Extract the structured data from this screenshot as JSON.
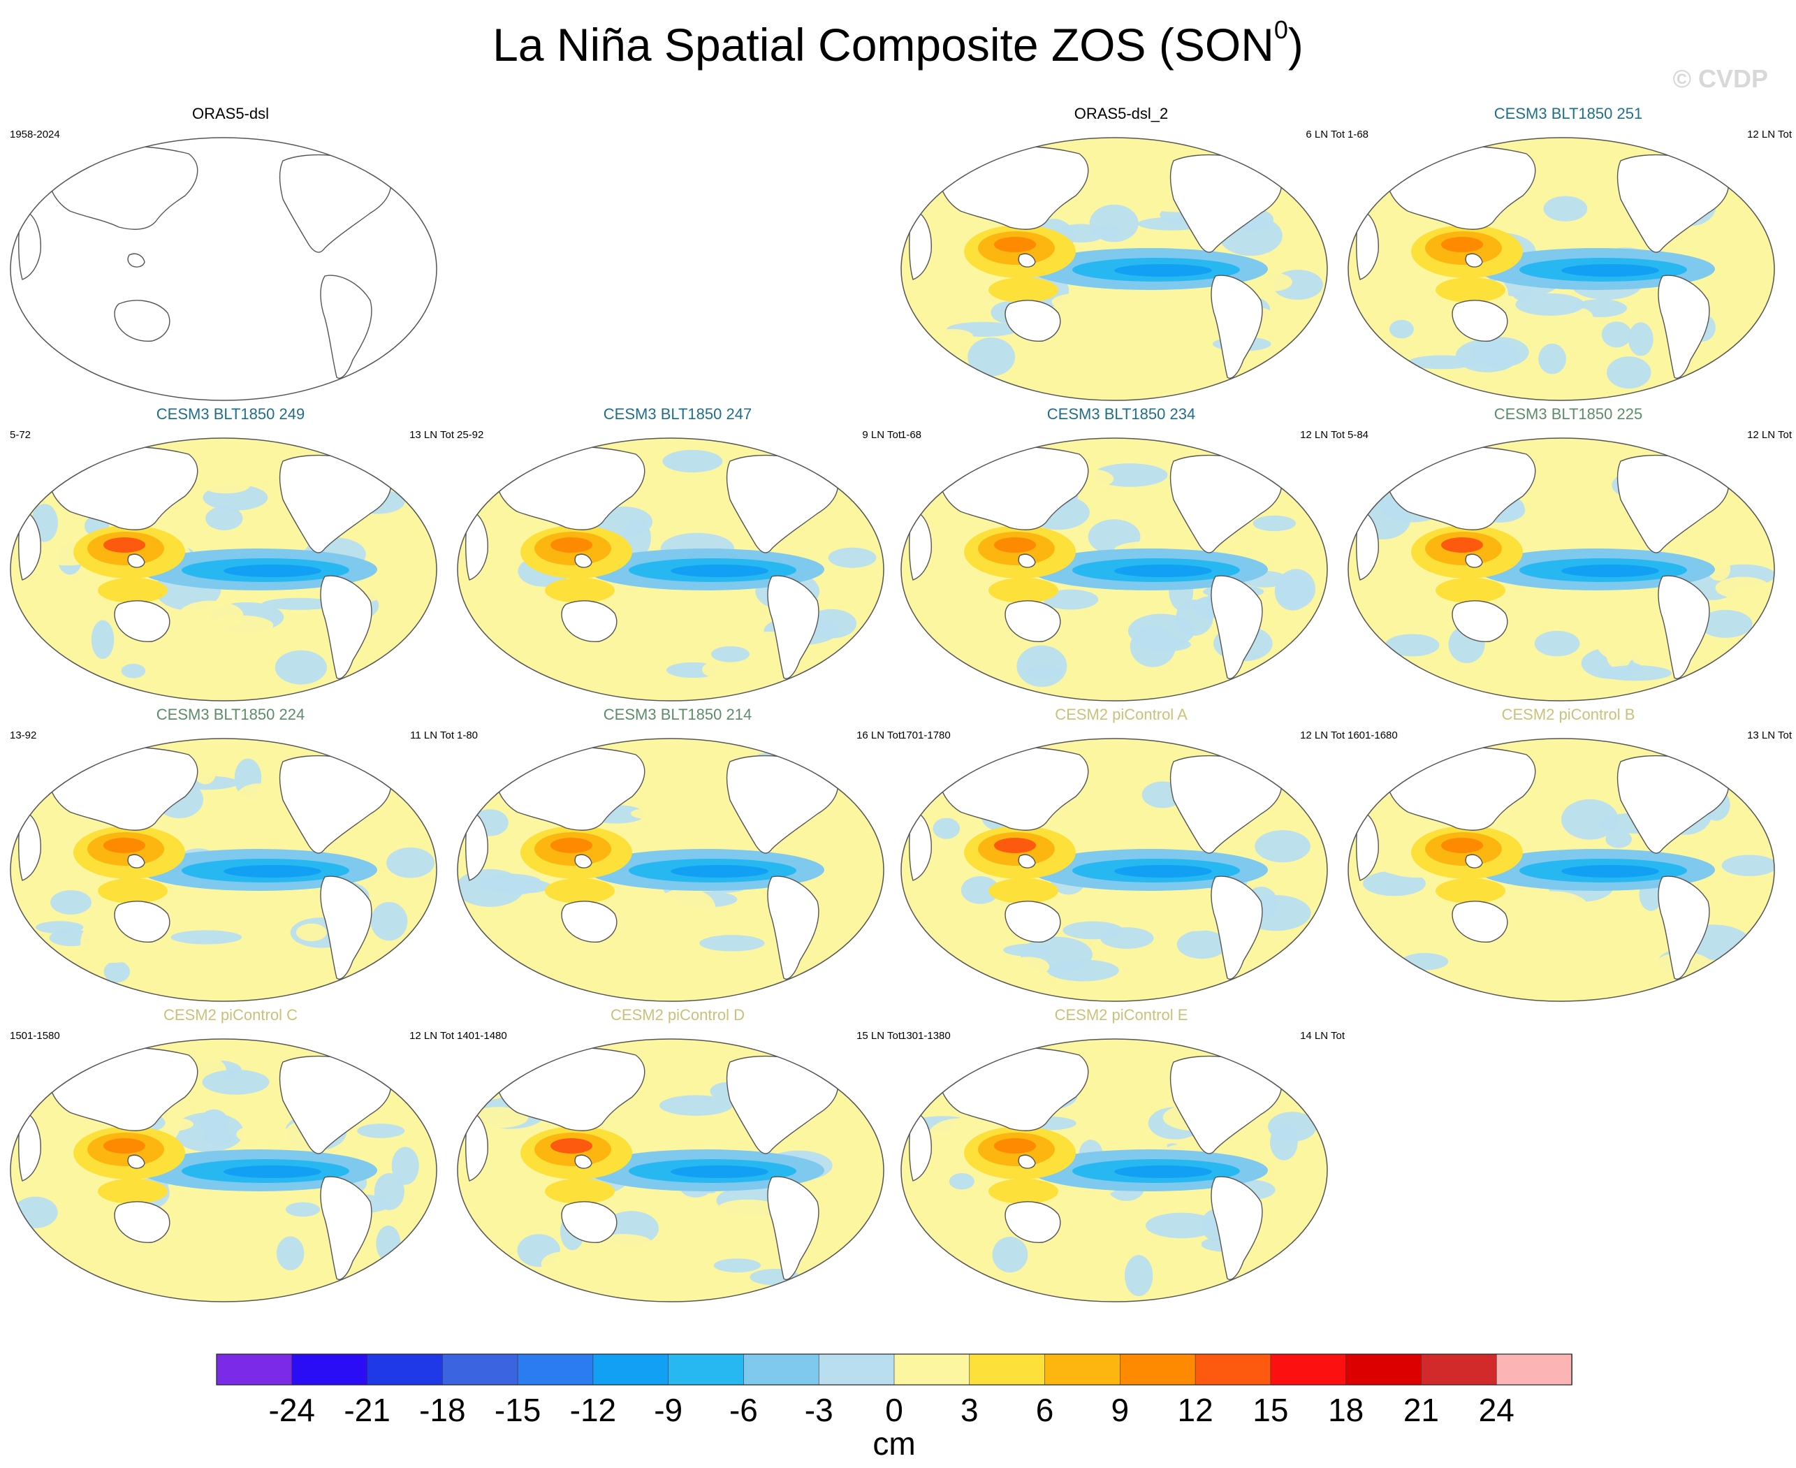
{
  "title": {
    "main": "La Niña Spatial Composite ZOS (SON",
    "sup": "0",
    "close": ")"
  },
  "watermark": "© CVDP",
  "panels": [
    {
      "title": "ORAS5-dsl",
      "years": "1958-2024",
      "total": "",
      "title_color": "#000000",
      "empty": true
    },
    {
      "title": "ORAS5-dsl_2",
      "years": "",
      "total": "6 LN Tot",
      "title_color": "#000000",
      "empty": false
    },
    {
      "title": "CESM3 BLT1850 251",
      "years": "1-68",
      "total": "12 LN Tot",
      "title_color": "#1f6f8b",
      "empty": false
    },
    {
      "title": "CESM3 BLT1850 249",
      "years": "5-72",
      "total": "13 LN Tot",
      "title_color": "#1f6f8b",
      "empty": false
    },
    {
      "title": "CESM3 BLT1850 247",
      "years": "25-92",
      "total": "9 LN Tot",
      "title_color": "#1f6f8b",
      "empty": false
    },
    {
      "title": "CESM3 BLT1850 234",
      "years": "1-68",
      "total": "12 LN Tot",
      "title_color": "#1f6f8b",
      "empty": false
    },
    {
      "title": "CESM3 BLT1850 225",
      "years": "5-84",
      "total": "12 LN Tot",
      "title_color": "#5e8c6a",
      "empty": false
    },
    {
      "title": "CESM3 BLT1850 224",
      "years": "13-92",
      "total": "11 LN Tot",
      "title_color": "#5e8c6a",
      "empty": false
    },
    {
      "title": "CESM3 BLT1850 214",
      "years": "1-80",
      "total": "16 LN Tot",
      "title_color": "#5e8c6a",
      "empty": false
    },
    {
      "title": "CESM2 piControl A",
      "years": "1701-1780",
      "total": "12 LN Tot",
      "title_color": "#c9c27a",
      "empty": false
    },
    {
      "title": "CESM2 piControl B",
      "years": "1601-1680",
      "total": "13 LN Tot",
      "title_color": "#c9c27a",
      "empty": false
    },
    {
      "title": "CESM2 piControl C",
      "years": "1501-1580",
      "total": "12 LN Tot",
      "title_color": "#c9c27a",
      "empty": false
    },
    {
      "title": "CESM2 piControl D",
      "years": "1401-1480",
      "total": "15 LN Tot",
      "title_color": "#c9c27a",
      "empty": false
    },
    {
      "title": "CESM2 piControl E",
      "years": "1301-1380",
      "total": "14 LN Tot",
      "title_color": "#c9c27a",
      "empty": false
    }
  ],
  "chart_data": {
    "type": "heatmap",
    "title": "La Niña Spatial Composite ZOS (SON0)",
    "variable": "ZOS",
    "units": "cm",
    "colorbar": {
      "tick_labels": [
        "-24",
        "-21",
        "-18",
        "-15",
        "-12",
        "-9",
        "-6",
        "-3",
        "0",
        "3",
        "6",
        "9",
        "12",
        "15",
        "18",
        "21",
        "24"
      ],
      "levels": [
        -24,
        -21,
        -18,
        -15,
        -12,
        -9,
        -6,
        -3,
        0,
        3,
        6,
        9,
        12,
        15,
        18,
        21,
        24
      ],
      "colors": [
        "#7b2be8",
        "#2a0cf5",
        "#1f39e8",
        "#3a64e0",
        "#2a7cf0",
        "#12a0f5",
        "#27b8f2",
        "#7fc8ee",
        "#b8def0",
        "#fdf6a0",
        "#fde03a",
        "#fdb510",
        "#fd8a00",
        "#fd5a10",
        "#fd1010",
        "#dc0000",
        "#d22a2a",
        "#fdb4b4"
      ],
      "label": "cm"
    },
    "panels": [
      {
        "name": "ORAS5-dsl",
        "years": "1958-2024",
        "ln_total": null,
        "data": "none"
      },
      {
        "name": "ORAS5-dsl_2",
        "years": null,
        "ln_total": 6
      },
      {
        "name": "CESM3 BLT1850 251",
        "years": "1-68",
        "ln_total": 12
      },
      {
        "name": "CESM3 BLT1850 249",
        "years": "5-72",
        "ln_total": 13
      },
      {
        "name": "CESM3 BLT1850 247",
        "years": "25-92",
        "ln_total": 9
      },
      {
        "name": "CESM3 BLT1850 234",
        "years": "1-68",
        "ln_total": 12
      },
      {
        "name": "CESM3 BLT1850 225",
        "years": "5-84",
        "ln_total": 12
      },
      {
        "name": "CESM3 BLT1850 224",
        "years": "13-92",
        "ln_total": 11
      },
      {
        "name": "CESM3 BLT1850 214",
        "years": "1-80",
        "ln_total": 16
      },
      {
        "name": "CESM2 piControl A",
        "years": "1701-1780",
        "ln_total": 12
      },
      {
        "name": "CESM2 piControl B",
        "years": "1601-1680",
        "ln_total": 13
      },
      {
        "name": "CESM2 piControl C",
        "years": "1501-1580",
        "ln_total": 12
      },
      {
        "name": "CESM2 piControl D",
        "years": "1401-1480",
        "ln_total": 15
      },
      {
        "name": "CESM2 piControl E",
        "years": "1301-1380",
        "ln_total": 14
      }
    ]
  }
}
